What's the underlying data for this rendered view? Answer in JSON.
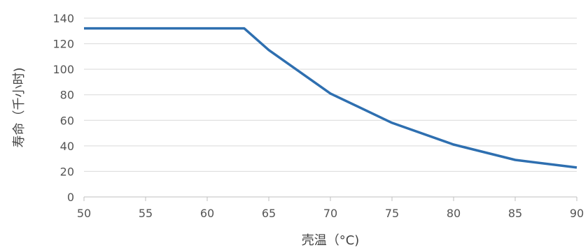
{
  "chart_data": {
    "type": "line",
    "title": "",
    "xlabel": "壳温（°C)",
    "ylabel": "寿命（千小时)",
    "xlim": [
      50,
      90
    ],
    "ylim": [
      0,
      140
    ],
    "xticks": [
      50,
      55,
      60,
      65,
      70,
      75,
      80,
      85,
      90
    ],
    "yticks": [
      0,
      20,
      40,
      60,
      80,
      100,
      120,
      140
    ],
    "grid": "horizontal",
    "legend": "none",
    "series": [
      {
        "color": "#2e6fb0",
        "points": [
          [
            50,
            132
          ],
          [
            63,
            132
          ],
          [
            65,
            115
          ],
          [
            70,
            81
          ],
          [
            75,
            58
          ],
          [
            80,
            41
          ],
          [
            85,
            29
          ],
          [
            90,
            23
          ]
        ]
      }
    ]
  }
}
